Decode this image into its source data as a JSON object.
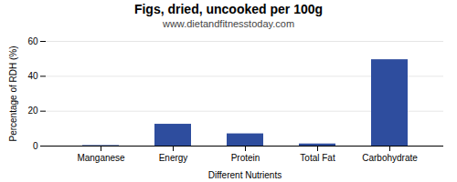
{
  "chart_data": {
    "type": "bar",
    "title": "Figs, dried, uncooked per 100g",
    "subtitle": "www.dietandfitnesstoday.com",
    "xlabel": "Different Nutrients",
    "ylabel": "Percentage of RDH (%)",
    "categories": [
      "Manganese",
      "Energy",
      "Protein",
      "Total Fat",
      "Carbohydrate"
    ],
    "values": [
      0.3,
      12.5,
      7.0,
      1.2,
      49.5
    ],
    "color": "#2e4d9e",
    "ylim": [
      0,
      60
    ],
    "yticks": [
      0,
      20,
      40,
      60
    ],
    "grid": true
  }
}
